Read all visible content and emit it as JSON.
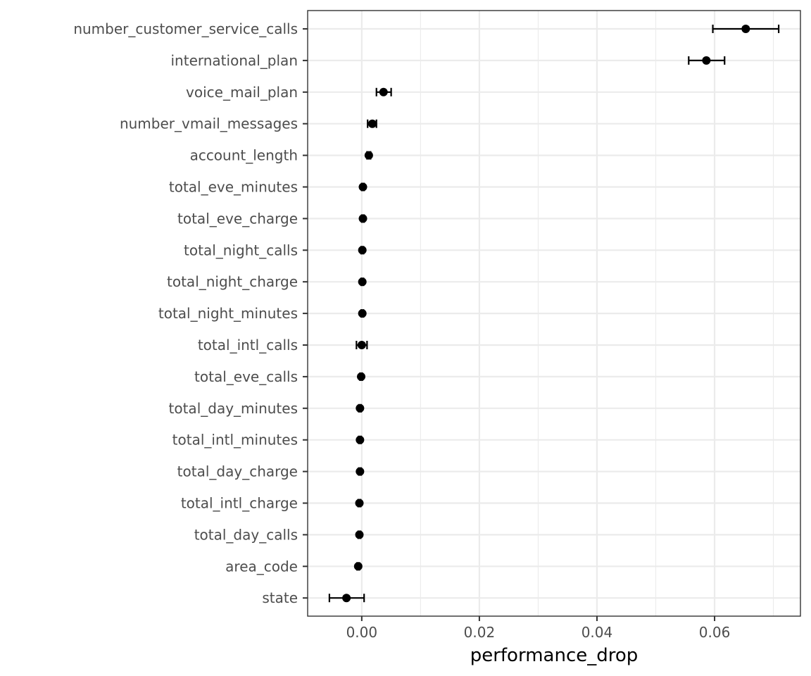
{
  "chart_data": {
    "type": "scatter",
    "title": "",
    "xlabel": "performance_drop",
    "ylabel": "",
    "xlim": [
      -0.0092,
      0.0746
    ],
    "x_ticks": [
      0.0,
      0.02,
      0.04,
      0.06
    ],
    "x_tick_labels": [
      "0.00",
      "0.02",
      "0.04",
      "0.06"
    ],
    "grid": true,
    "colors": {
      "point": "#000000",
      "grid": "#ebebeb",
      "panel_border": "#333333",
      "tick_text": "#4d4d4d"
    },
    "points": [
      {
        "feature": "number_customer_service_calls",
        "value": 0.0653,
        "lower": 0.0597,
        "upper": 0.0709
      },
      {
        "feature": "international_plan",
        "value": 0.0586,
        "lower": 0.0556,
        "upper": 0.0617
      },
      {
        "feature": "voice_mail_plan",
        "value": 0.0037,
        "lower": 0.0025,
        "upper": 0.005
      },
      {
        "feature": "number_vmail_messages",
        "value": 0.0018,
        "lower": 0.001,
        "upper": 0.0025
      },
      {
        "feature": "account_length",
        "value": 0.0012,
        "lower": 0.0009,
        "upper": 0.0015
      },
      {
        "feature": "total_eve_minutes",
        "value": 0.0002,
        "lower": 0.0,
        "upper": 0.0004
      },
      {
        "feature": "total_eve_charge",
        "value": 0.0002,
        "lower": 0.0,
        "upper": 0.0004
      },
      {
        "feature": "total_night_calls",
        "value": 0.0001,
        "lower": -0.0001,
        "upper": 0.0003
      },
      {
        "feature": "total_night_charge",
        "value": 0.0001,
        "lower": -0.0001,
        "upper": 0.0003
      },
      {
        "feature": "total_night_minutes",
        "value": 0.0001,
        "lower": -0.0001,
        "upper": 0.0003
      },
      {
        "feature": "total_intl_calls",
        "value": 0.0,
        "lower": -0.0009,
        "upper": 0.0009
      },
      {
        "feature": "total_eve_calls",
        "value": -0.0001,
        "lower": -0.0003,
        "upper": 0.0001
      },
      {
        "feature": "total_day_minutes",
        "value": -0.0003,
        "lower": -0.0005,
        "upper": -0.0001
      },
      {
        "feature": "total_intl_minutes",
        "value": -0.0003,
        "lower": -0.0005,
        "upper": -0.0001
      },
      {
        "feature": "total_day_charge",
        "value": -0.0003,
        "lower": -0.0005,
        "upper": -0.0001
      },
      {
        "feature": "total_intl_charge",
        "value": -0.0004,
        "lower": -0.0006,
        "upper": -0.0002
      },
      {
        "feature": "total_day_calls",
        "value": -0.0004,
        "lower": -0.0006,
        "upper": -0.0002
      },
      {
        "feature": "area_code",
        "value": -0.0006,
        "lower": -0.0008,
        "upper": -0.0004
      },
      {
        "feature": "state",
        "value": -0.0026,
        "lower": -0.0055,
        "upper": 0.0004
      }
    ]
  }
}
